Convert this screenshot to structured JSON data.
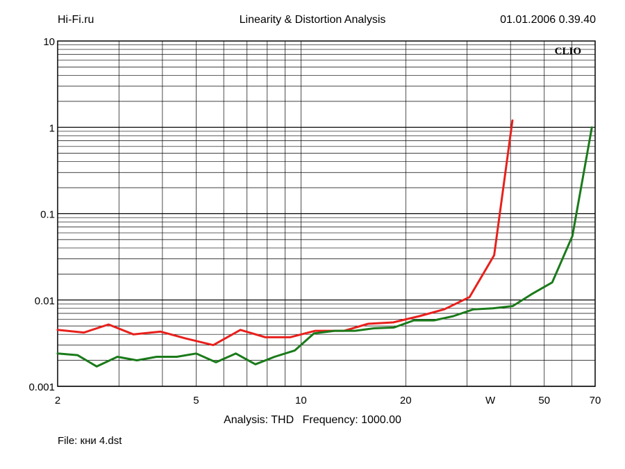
{
  "header": {
    "left": "Hi-Fi.ru",
    "center": "Linearity & Distortion Analysis",
    "right": "01.01.2006 0.39.40"
  },
  "footer": {
    "analysis": "Analysis: THD",
    "frequency": "Frequency: 1000.00",
    "file": "File: кни 4.dst"
  },
  "chart_data": {
    "type": "line",
    "watermark": "CLIO",
    "x_scale": "log",
    "y_scale": "log",
    "xlim": [
      2,
      70
    ],
    "ylim": [
      0.001,
      10
    ],
    "x_ticks": [
      {
        "value": 2,
        "label": "2"
      },
      {
        "value": 5,
        "label": "5"
      },
      {
        "value": 10,
        "label": "10"
      },
      {
        "value": 20,
        "label": "20"
      },
      {
        "value": 35,
        "label": "W"
      },
      {
        "value": 50,
        "label": "50"
      },
      {
        "value": 70,
        "label": "70"
      }
    ],
    "y_ticks": [
      {
        "value": 10,
        "label": "10"
      },
      {
        "value": 1,
        "label": "1"
      },
      {
        "value": 0.1,
        "label": "0.1"
      },
      {
        "value": 0.01,
        "label": "0.01"
      },
      {
        "value": 0.001,
        "label": "0.001"
      }
    ],
    "grid": true,
    "series": [
      {
        "color": "#e8201c",
        "points": [
          [
            2.0,
            0.0045
          ],
          [
            2.38,
            0.0042
          ],
          [
            2.8,
            0.0052
          ],
          [
            3.3,
            0.004
          ],
          [
            3.95,
            0.0043
          ],
          [
            4.65,
            0.0036
          ],
          [
            5.6,
            0.003
          ],
          [
            6.7,
            0.0045
          ],
          [
            7.9,
            0.0037
          ],
          [
            9.3,
            0.0037
          ],
          [
            11.0,
            0.0044
          ],
          [
            13.3,
            0.0044
          ],
          [
            15.6,
            0.0053
          ],
          [
            18.4,
            0.0055
          ],
          [
            21.9,
            0.0065
          ],
          [
            25.8,
            0.0078
          ],
          [
            30.5,
            0.0108
          ],
          [
            35.9,
            0.033
          ],
          [
            40.5,
            1.2
          ]
        ]
      },
      {
        "color": "#1a7a1a",
        "points": [
          [
            2.0,
            0.0024
          ],
          [
            2.28,
            0.0023
          ],
          [
            2.59,
            0.0017
          ],
          [
            2.97,
            0.0022
          ],
          [
            3.38,
            0.002
          ],
          [
            3.85,
            0.0022
          ],
          [
            4.4,
            0.0022
          ],
          [
            5.0,
            0.0024
          ],
          [
            5.7,
            0.0019
          ],
          [
            6.5,
            0.0024
          ],
          [
            7.4,
            0.0018
          ],
          [
            8.4,
            0.0022
          ],
          [
            9.6,
            0.0026
          ],
          [
            10.9,
            0.0041
          ],
          [
            12.5,
            0.0044
          ],
          [
            14.3,
            0.0044
          ],
          [
            16.2,
            0.0047
          ],
          [
            18.5,
            0.0048
          ],
          [
            21.1,
            0.0058
          ],
          [
            24.1,
            0.0058
          ],
          [
            27.4,
            0.0065
          ],
          [
            31.3,
            0.0078
          ],
          [
            35.6,
            0.008
          ],
          [
            40.6,
            0.0085
          ],
          [
            46.2,
            0.0118
          ],
          [
            52.7,
            0.016
          ],
          [
            60.2,
            0.055
          ],
          [
            68.5,
            1.0
          ]
        ]
      }
    ]
  }
}
